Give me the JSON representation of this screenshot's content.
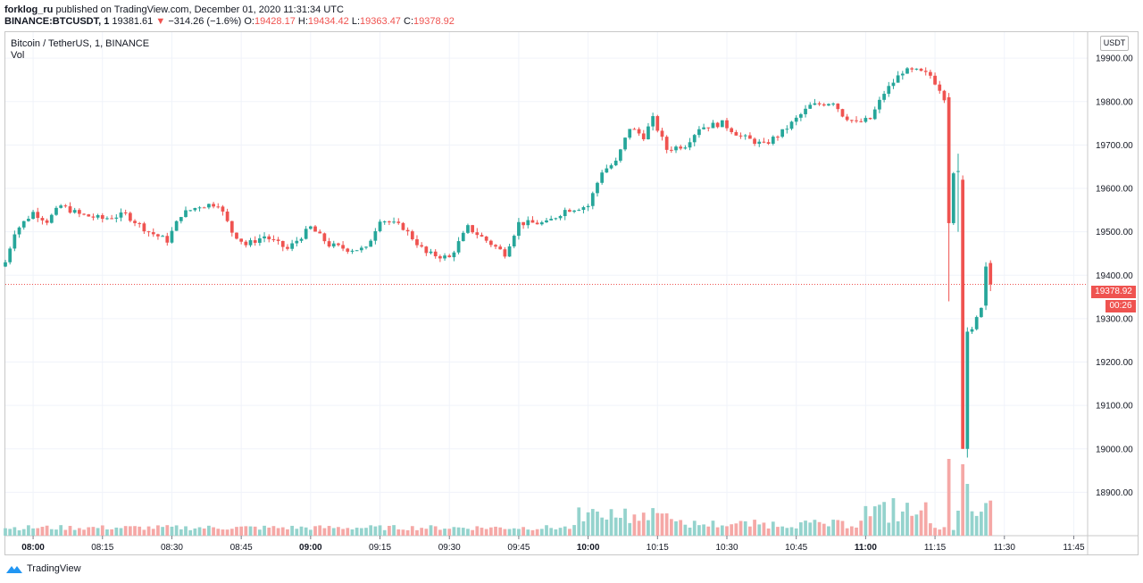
{
  "header": {
    "author": "forklog_ru",
    "published_text": "published on TradingView.com, December 01, 2020 11:31:34 UTC",
    "symbol": "BINANCE:BTCUSDT, 1",
    "last": "19381.61",
    "change": "−314.26 (−1.6%)",
    "o_label": "O:",
    "o": "19428.17",
    "h_label": "H:",
    "h": "19434.42",
    "l_label": "L:",
    "l": "19363.47",
    "c_label": "C:",
    "c": "19378.92"
  },
  "legend": {
    "title": "Bitcoin / TetherUS, 1, BINANCE",
    "vol": "Vol"
  },
  "axis_badge": "USDT",
  "current_price_label": "19378.92",
  "countdown": "00:26",
  "brand": "TradingView",
  "colors": {
    "up": "#26a69a",
    "down": "#ef5350",
    "vol_up": "#94d3cd",
    "vol_down": "#f5a8a6",
    "grid": "#f0f3fa"
  },
  "chart_data": {
    "type": "candlestick",
    "xlabel": "",
    "ylabel": "",
    "ylim": [
      18800,
      19960
    ],
    "y_ticks": [
      18900,
      19000,
      19100,
      19200,
      19300,
      19400,
      19500,
      19600,
      19700,
      19800,
      19900
    ],
    "y_tick_labels": [
      "18900.00",
      "19000.00",
      "19100.00",
      "19200.00",
      "19300.00",
      "19400.00",
      "19500.00",
      "19600.00",
      "19700.00",
      "19800.00",
      "19900.00"
    ],
    "x_start": "07:54",
    "x_end": "11:48",
    "x_ticks": [
      "08:00",
      "08:15",
      "08:30",
      "08:45",
      "09:00",
      "09:15",
      "09:30",
      "09:45",
      "10:00",
      "10:15",
      "10:30",
      "10:45",
      "11:00",
      "11:15",
      "11:30",
      "11:45"
    ],
    "bold_x_ticks": [
      "08:00",
      "09:00",
      "10:00",
      "11:00"
    ],
    "current_price": 19378.92,
    "candle_interval": "1 minute",
    "anchors": [
      [
        "07:54",
        19430
      ],
      [
        "07:56",
        19500
      ],
      [
        "08:00",
        19545
      ],
      [
        "08:03",
        19525
      ],
      [
        "08:06",
        19560
      ],
      [
        "08:10",
        19540
      ],
      [
        "08:15",
        19530
      ],
      [
        "08:20",
        19540
      ],
      [
        "08:25",
        19500
      ],
      [
        "08:29",
        19480
      ],
      [
        "08:32",
        19540
      ],
      [
        "08:36",
        19560
      ],
      [
        "08:40",
        19565
      ],
      [
        "08:43",
        19500
      ],
      [
        "08:46",
        19470
      ],
      [
        "08:50",
        19490
      ],
      [
        "08:55",
        19460
      ],
      [
        "09:00",
        19510
      ],
      [
        "09:04",
        19470
      ],
      [
        "09:08",
        19460
      ],
      [
        "09:12",
        19460
      ],
      [
        "09:15",
        19530
      ],
      [
        "09:20",
        19510
      ],
      [
        "09:25",
        19450
      ],
      [
        "09:30",
        19440
      ],
      [
        "09:34",
        19510
      ],
      [
        "09:38",
        19480
      ],
      [
        "09:42",
        19450
      ],
      [
        "09:45",
        19520
      ],
      [
        "09:51",
        19520
      ],
      [
        "09:55",
        19550
      ],
      [
        "10:00",
        19560
      ],
      [
        "10:03",
        19640
      ],
      [
        "10:06",
        19660
      ],
      [
        "10:09",
        19740
      ],
      [
        "10:12",
        19720
      ],
      [
        "10:14",
        19760
      ],
      [
        "10:17",
        19690
      ],
      [
        "10:21",
        19700
      ],
      [
        "10:24",
        19740
      ],
      [
        "10:29",
        19750
      ],
      [
        "10:33",
        19720
      ],
      [
        "10:38",
        19700
      ],
      [
        "10:42",
        19730
      ],
      [
        "10:48",
        19790
      ],
      [
        "10:53",
        19800
      ],
      [
        "10:55",
        19770
      ],
      [
        "10:58",
        19750
      ],
      [
        "11:01",
        19760
      ],
      [
        "11:04",
        19820
      ],
      [
        "11:08",
        19870
      ],
      [
        "11:11",
        19870
      ],
      [
        "11:14",
        19860
      ],
      [
        "11:16",
        19830
      ],
      [
        "11:17",
        19810
      ],
      [
        "11:18",
        19520
      ],
      [
        "11:19",
        19640
      ],
      [
        "11:20",
        19640
      ],
      [
        "11:21",
        19520
      ],
      [
        "11:22",
        19000
      ],
      [
        "11:23",
        19270
      ],
      [
        "11:24",
        19300
      ],
      [
        "11:25",
        19330
      ],
      [
        "11:26",
        19420
      ],
      [
        "11:27",
        19379
      ]
    ],
    "notable_candles": [
      {
        "time": "11:18",
        "open": 19810,
        "high": 19820,
        "low": 19340,
        "close": 19520
      },
      {
        "time": "11:20",
        "open": 19640,
        "high": 19680,
        "low": 19500,
        "close": 19640
      },
      {
        "time": "11:21",
        "open": 19620,
        "high": 19630,
        "low": 19000,
        "close": 19000
      },
      {
        "time": "11:22",
        "open": 19000,
        "high": 19280,
        "low": 18980,
        "close": 19270
      },
      {
        "time": "11:26",
        "open": 19330,
        "high": 19430,
        "low": 19320,
        "close": 19420
      },
      {
        "time": "11:27",
        "open": 19428.17,
        "high": 19434.42,
        "low": 19363.47,
        "close": 19378.92
      }
    ],
    "volume": {
      "relative_peak_time": "11:20",
      "notes": "baseline small bars; elevated 09:58-10:20; spikes near 11:00 and 11:18-11:25"
    }
  }
}
